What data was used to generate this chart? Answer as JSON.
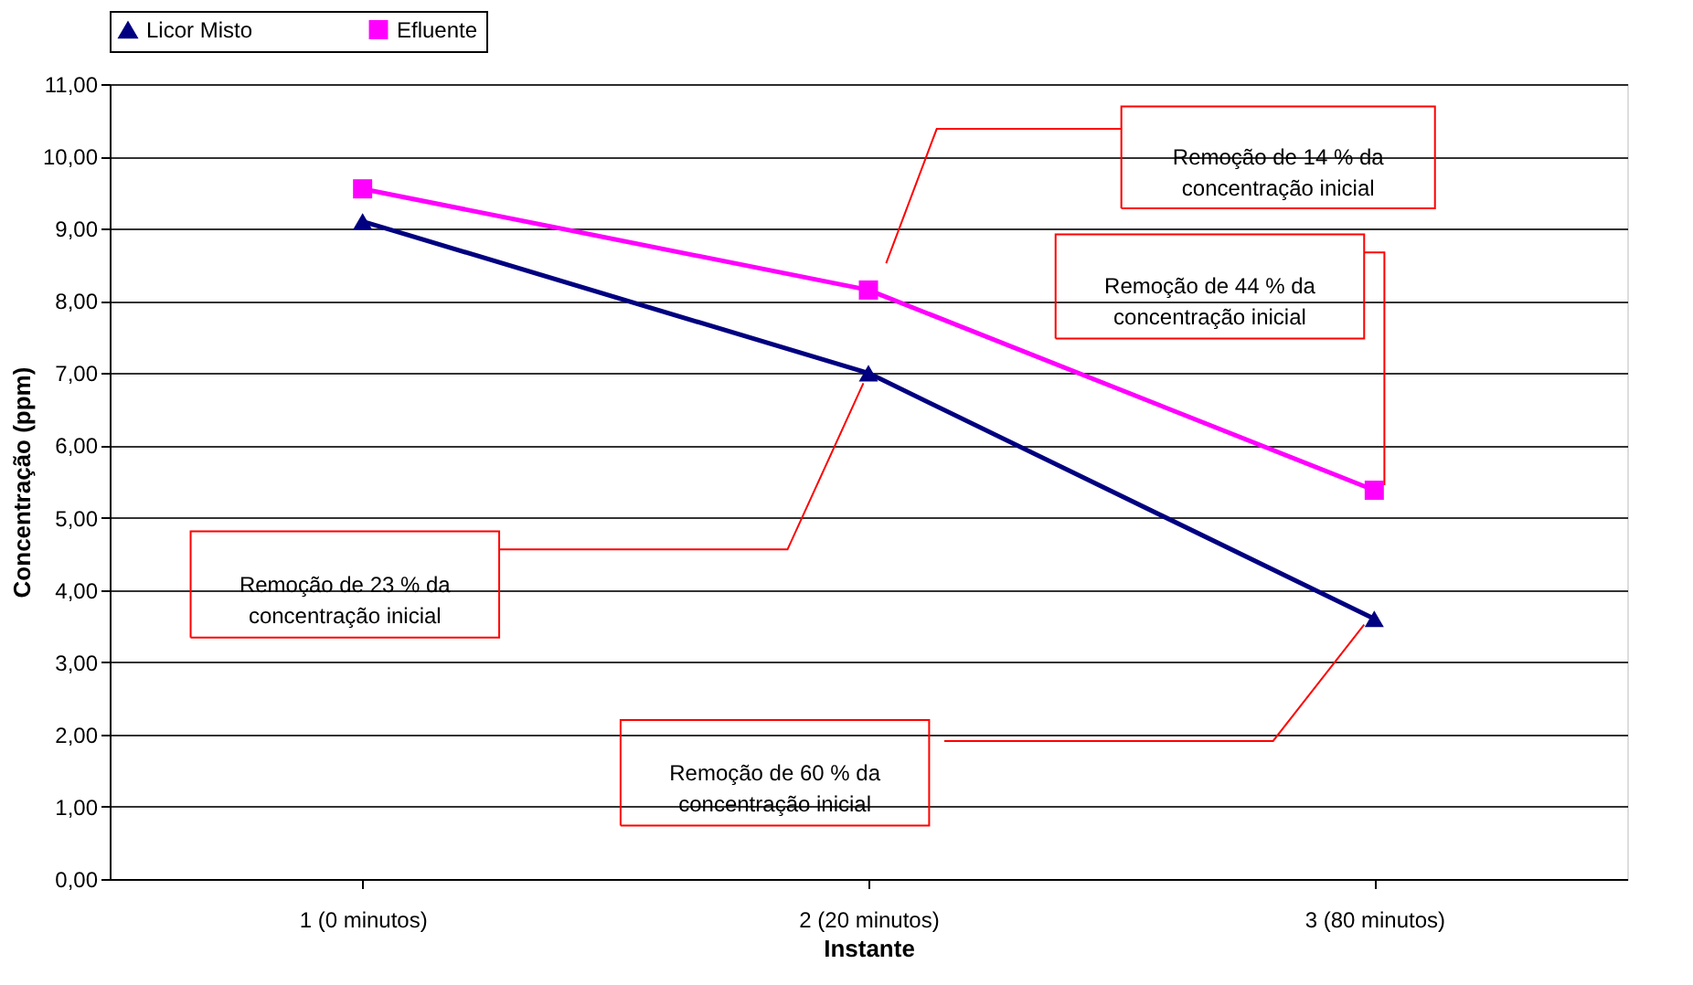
{
  "chart_data": {
    "type": "line",
    "categories": [
      "1 (0 minutos)",
      "2 (20 minutos)",
      "3 (80 minutos)"
    ],
    "series": [
      {
        "name": "Licor Misto",
        "color": "#000080",
        "marker": "triangle",
        "values": [
          9.1,
          7.0,
          3.6
        ]
      },
      {
        "name": "Efluente",
        "color": "#ff00ff",
        "marker": "square",
        "values": [
          9.55,
          8.15,
          5.38
        ]
      }
    ],
    "xlabel": "Instante",
    "ylabel": "Concentração (ppm)",
    "ylim": [
      0,
      11
    ],
    "yticks": [
      {
        "value": 0,
        "label": "0,00"
      },
      {
        "value": 1,
        "label": "1,00"
      },
      {
        "value": 2,
        "label": "2,00"
      },
      {
        "value": 3,
        "label": "3,00"
      },
      {
        "value": 4,
        "label": "4,00"
      },
      {
        "value": 5,
        "label": "5,00"
      },
      {
        "value": 6,
        "label": "6,00"
      },
      {
        "value": 7,
        "label": "7,00"
      },
      {
        "value": 8,
        "label": "8,00"
      },
      {
        "value": 9,
        "label": "9,00"
      },
      {
        "value": 10,
        "label": "10,00"
      },
      {
        "value": 11,
        "label": "11,00"
      }
    ],
    "grid": "y",
    "legend": "top",
    "line_style": "solid",
    "annotations": [
      "Remoção de 14 % da concentração inicial",
      "Remoção de 44 % da concentração inicial",
      "Remoção de 23 % da concentração inicial",
      "Remoção de 60 % da concentração inicial"
    ]
  }
}
